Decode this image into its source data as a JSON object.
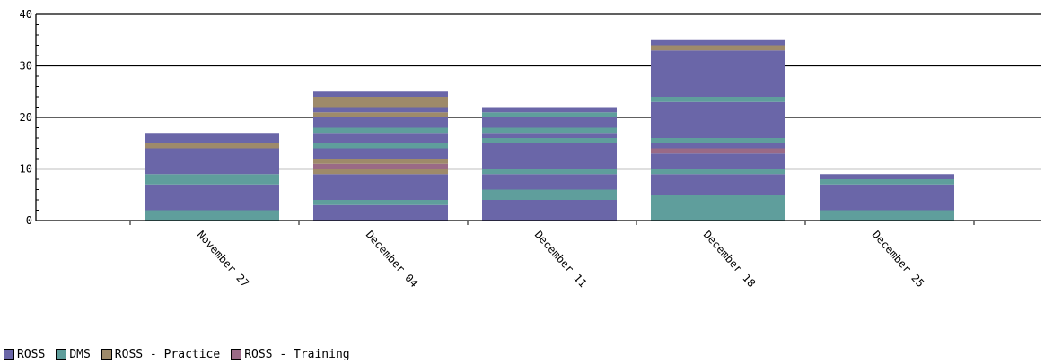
{
  "chart_data": {
    "type": "bar",
    "stacked": true,
    "title": "",
    "xlabel": "",
    "ylabel": "",
    "ylim": [
      0,
      40
    ],
    "yticks": [
      0,
      10,
      20,
      30,
      40
    ],
    "grid": true,
    "legend_position": "bottom-left",
    "categories": [
      "November 27",
      "December 04",
      "December 11",
      "December 18",
      "December 25"
    ],
    "colors": {
      "ROSS": "#6a66a8",
      "DMS": "#5f9e9c",
      "ROSS - Practice": "#9e8a6a",
      "ROSS - Training": "#9a6a86"
    },
    "series": [
      {
        "name": "ROSS"
      },
      {
        "name": "DMS"
      },
      {
        "name": "ROSS - Practice"
      },
      {
        "name": "ROSS - Training"
      }
    ],
    "stacks": [
      [
        [
          "DMS",
          2
        ],
        [
          "ROSS",
          5
        ],
        [
          "DMS",
          2
        ],
        [
          "ROSS",
          5
        ],
        [
          "ROSS - Practice",
          1
        ],
        [
          "ROSS",
          2
        ]
      ],
      [
        [
          "ROSS",
          3
        ],
        [
          "DMS",
          1
        ],
        [
          "ROSS",
          5
        ],
        [
          "ROSS - Practice",
          1
        ],
        [
          "ROSS - Training",
          1
        ],
        [
          "ROSS - Practice",
          1
        ],
        [
          "ROSS",
          2
        ],
        [
          "DMS",
          1
        ],
        [
          "ROSS",
          2
        ],
        [
          "DMS",
          1
        ],
        [
          "ROSS",
          2
        ],
        [
          "ROSS - Practice",
          1
        ],
        [
          "ROSS",
          1
        ],
        [
          "ROSS - Practice",
          2
        ],
        [
          "ROSS",
          1
        ]
      ],
      [
        [
          "ROSS",
          4
        ],
        [
          "DMS",
          2
        ],
        [
          "ROSS",
          3
        ],
        [
          "DMS",
          1
        ],
        [
          "ROSS",
          5
        ],
        [
          "DMS",
          1
        ],
        [
          "ROSS",
          1
        ],
        [
          "DMS",
          1
        ],
        [
          "ROSS",
          2
        ],
        [
          "DMS",
          1
        ],
        [
          "ROSS",
          1
        ]
      ],
      [
        [
          "DMS",
          2
        ],
        [
          "DMS",
          3
        ],
        [
          "ROSS",
          4
        ],
        [
          "DMS",
          1
        ],
        [
          "ROSS",
          3
        ],
        [
          "ROSS - Training",
          1
        ],
        [
          "ROSS",
          1
        ],
        [
          "DMS",
          1
        ],
        [
          "ROSS",
          7
        ],
        [
          "DMS",
          1
        ],
        [
          "ROSS",
          9
        ],
        [
          "ROSS - Practice",
          1
        ],
        [
          "ROSS",
          1
        ]
      ],
      [
        [
          "DMS",
          2
        ],
        [
          "ROSS",
          5
        ],
        [
          "DMS",
          1
        ],
        [
          "ROSS",
          1
        ]
      ]
    ]
  }
}
